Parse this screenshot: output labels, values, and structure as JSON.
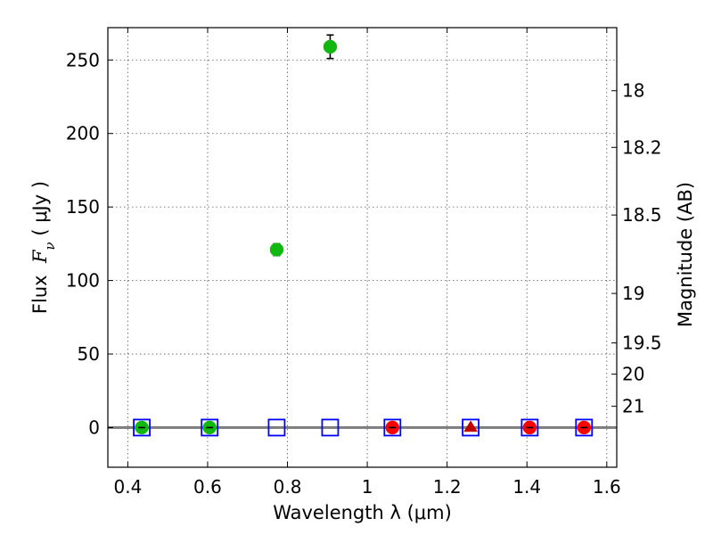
{
  "chart_data": {
    "type": "scatter",
    "xlabel": "Wavelength  λ (μm)",
    "ylabel": "Flux  F_ν  ( μJy )",
    "y2label": "Magnitude (AB)",
    "xlim": [
      0.35,
      1.625
    ],
    "ylim": [
      -27,
      272
    ],
    "grid": true,
    "grid_style": "dotted",
    "x_ticks": [
      0.4,
      0.6,
      0.8,
      1.0,
      1.2,
      1.4,
      1.6
    ],
    "x_tick_labels": [
      "0.4",
      "0.6",
      "0.8",
      "1",
      "1.2",
      "1.4",
      "1.6"
    ],
    "y_ticks": [
      0,
      50,
      100,
      150,
      200,
      250
    ],
    "y_tick_labels": [
      "0",
      "50",
      "100",
      "150",
      "200",
      "250"
    ],
    "mag_ticks": [
      18,
      18.2,
      18.5,
      19,
      19.5,
      20,
      21
    ],
    "mag_tick_labels": [
      "18",
      "18.2",
      "18.5",
      "19",
      "19.5",
      "20",
      "21"
    ],
    "zero_line": {
      "y": 0,
      "color": "#808080"
    },
    "series": [
      {
        "marker": "circle",
        "color": "#11b811",
        "points": [
          {
            "x": 0.435,
            "y": 0,
            "err": 0
          },
          {
            "x": 0.605,
            "y": 0,
            "err": 0
          },
          {
            "x": 0.773,
            "y": 121,
            "err": 4
          },
          {
            "x": 0.907,
            "y": 259,
            "err": 8
          }
        ]
      },
      {
        "marker": "circle",
        "color": "#ff0000",
        "points": [
          {
            "x": 1.063,
            "y": 0,
            "err": 0
          },
          {
            "x": 1.407,
            "y": 0,
            "err": 0
          },
          {
            "x": 1.543,
            "y": 0,
            "err": 0
          }
        ]
      },
      {
        "marker": "triangle",
        "color": "#c00000",
        "points": [
          {
            "x": 1.259,
            "y": 0,
            "err": 0
          }
        ]
      },
      {
        "marker": "open-square",
        "color": "#0000ff",
        "points": [
          {
            "x": 0.435,
            "y": 0
          },
          {
            "x": 0.605,
            "y": 0
          },
          {
            "x": 0.773,
            "y": 0
          },
          {
            "x": 0.907,
            "y": 0
          },
          {
            "x": 1.063,
            "y": 0
          },
          {
            "x": 1.259,
            "y": 0
          },
          {
            "x": 1.407,
            "y": 0
          },
          {
            "x": 1.543,
            "y": 0
          }
        ]
      }
    ]
  }
}
